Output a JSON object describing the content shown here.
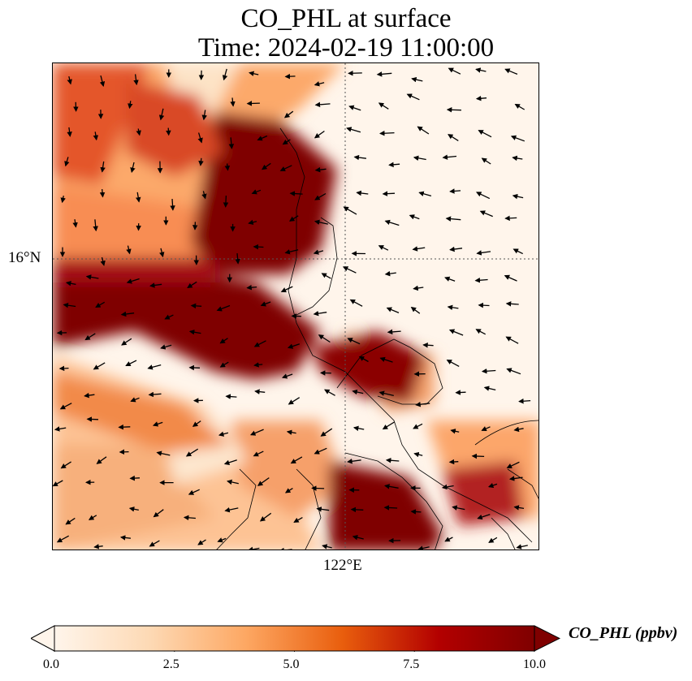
{
  "title": {
    "line1": "CO_PHL at surface",
    "line2": "Time: 2024-02-19 11:00:00"
  },
  "map": {
    "lat_label": "16°N",
    "lon_label": "122°E",
    "colormap": [
      "#fff5eb",
      "#fdd9b4",
      "#fda762",
      "#e95e0d",
      "#b30000",
      "#7f0000"
    ]
  },
  "colorbar": {
    "title": "CO_PHL (ppbv)",
    "ticks": [
      "0.0",
      "2.5",
      "5.0",
      "7.5",
      "10.0"
    ],
    "min": 0,
    "max": 10,
    "extend": "both"
  }
}
